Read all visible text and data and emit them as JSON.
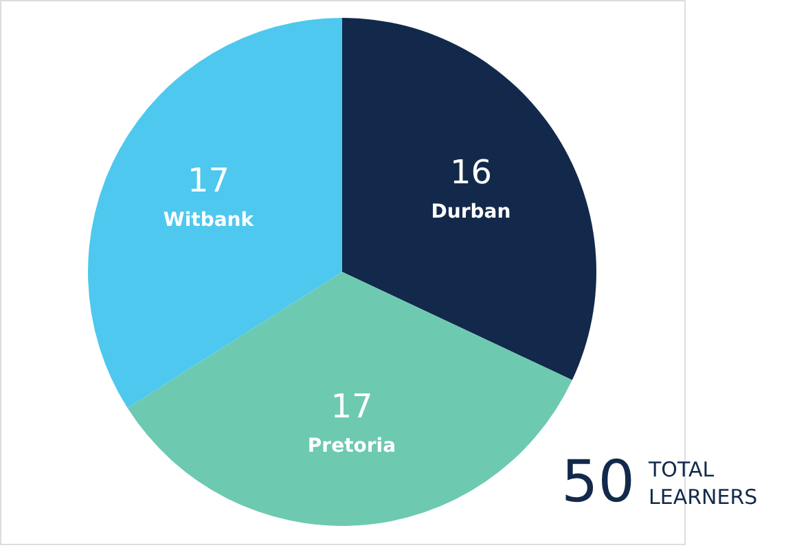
{
  "chart_data": {
    "type": "pie",
    "categories": [
      "Durban",
      "Pretoria",
      "Witbank"
    ],
    "values": [
      16,
      17,
      17
    ],
    "colors": [
      "#13294b",
      "#6ec9b1",
      "#4ec8ee"
    ],
    "data_labels": true,
    "annotations": [
      "50",
      "TOTAL LEARNERS"
    ]
  }
}
